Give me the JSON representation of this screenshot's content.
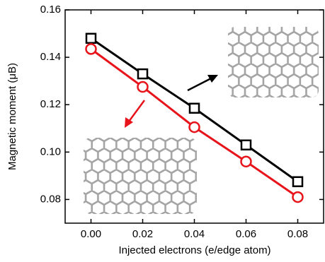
{
  "chart_data": {
    "type": "line",
    "xlabel": "Injected electrons (e/edge atom)",
    "ylabel": "Magnetic moment (μB)",
    "x": [
      0.0,
      0.02,
      0.04,
      0.06,
      0.08
    ],
    "series": [
      {
        "color": "#000000",
        "marker": "square",
        "values": [
          0.148,
          0.133,
          0.1185,
          0.103,
          0.0875
        ]
      },
      {
        "color": "#e8141b",
        "marker": "circle",
        "values": [
          0.1435,
          0.1275,
          0.1105,
          0.096,
          0.081
        ]
      }
    ],
    "xlim": [
      -0.01,
      0.09
    ],
    "ylim": [
      0.07,
      0.16
    ],
    "xticks": [
      {
        "value": 0,
        "label": "0.00"
      },
      {
        "value": 0.02,
        "label": "0.02"
      },
      {
        "value": 0.04,
        "label": "0.04"
      },
      {
        "value": 0.06,
        "label": "0.06"
      },
      {
        "value": 0.08,
        "label": "0.08"
      }
    ],
    "yticks": [
      {
        "value": 0.08,
        "label": "0.08"
      },
      {
        "value": 0.1,
        "label": "0.10"
      },
      {
        "value": 0.12,
        "label": "0.12"
      },
      {
        "value": 0.14,
        "label": "0.14"
      },
      {
        "value": 0.16,
        "label": "0.16"
      }
    ]
  }
}
